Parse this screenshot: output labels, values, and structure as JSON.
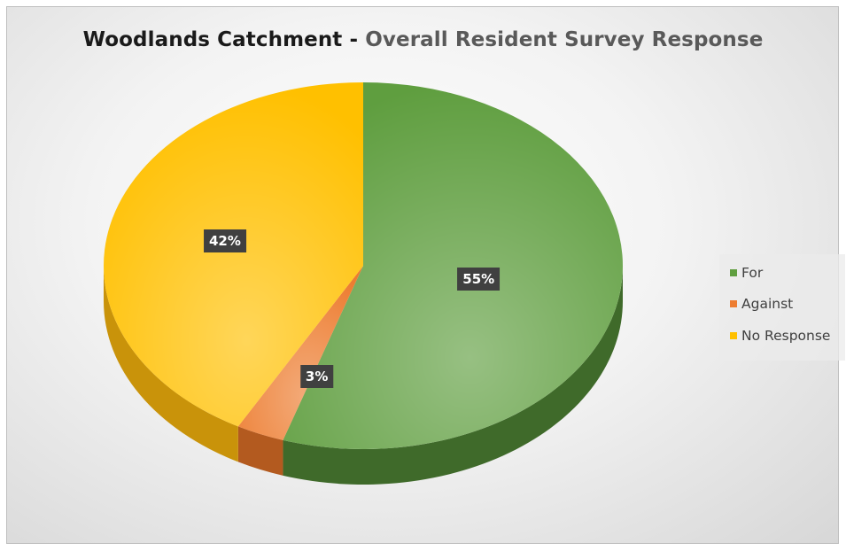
{
  "chart_data": {
    "type": "pie",
    "title": "Woodlands Catchment",
    "subtitle": "Overall Resident Survey Response",
    "title_separator": " - ",
    "slices": [
      {
        "name": "For",
        "value": 55,
        "label": "55%",
        "color": "#5f9e3f",
        "side_color": "#3f6a2a"
      },
      {
        "name": "Against",
        "value": 3,
        "label": "3%",
        "color": "#ed7d31",
        "side_color": "#b35a1f"
      },
      {
        "name": "No Response",
        "value": 42,
        "label": "42%",
        "color": "#ffc000",
        "side_color": "#c9930a"
      }
    ],
    "legend_position": "right",
    "three_d": true
  }
}
